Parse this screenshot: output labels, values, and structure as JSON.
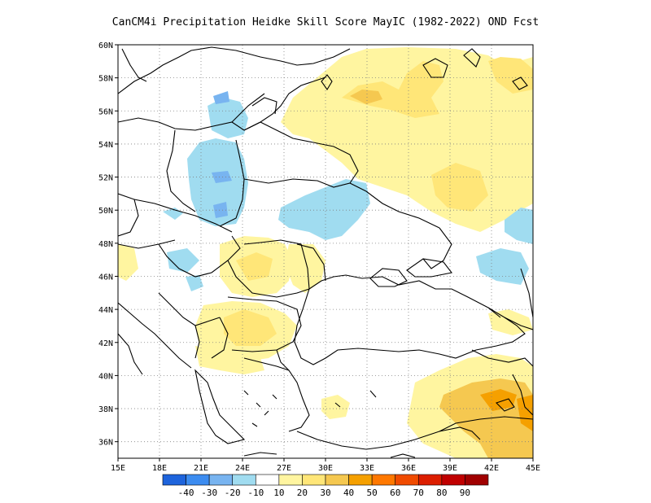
{
  "title": "CanCM4i  Precipitation Heidke Skill Score MayIC (1982-2022) OND Fcst",
  "map": {
    "lon_range": [
      15,
      45
    ],
    "lat_range": [
      35,
      60
    ],
    "lon_ticks": [
      "15E",
      "18E",
      "21E",
      "24E",
      "27E",
      "30E",
      "33E",
      "36E",
      "39E",
      "42E",
      "45E"
    ],
    "lat_ticks": [
      "60N",
      "58N",
      "56N",
      "54N",
      "52N",
      "50N",
      "48N",
      "46N",
      "44N",
      "42N",
      "40N",
      "38N",
      "36N"
    ],
    "grid": "dotted"
  },
  "colorbar": {
    "labels": [
      "-40",
      "-30",
      "-20",
      "-10",
      "10",
      "20",
      "30",
      "40",
      "50",
      "60",
      "70",
      "80",
      "90"
    ],
    "colors": [
      "#1e64dc",
      "#3c8cf0",
      "#78b4f0",
      "#a0dcf0",
      "#ffffff",
      "#fff5a0",
      "#ffe678",
      "#f5c850",
      "#f5a000",
      "#ff7800",
      "#f04b00",
      "#dc1e00",
      "#c00000",
      "#a00000"
    ]
  },
  "colors": {
    "coast": "#000000",
    "border": "#000000",
    "grid": "#808080",
    "land_default": "#ffffff"
  },
  "labels": {
    "colorbar_title": ""
  }
}
